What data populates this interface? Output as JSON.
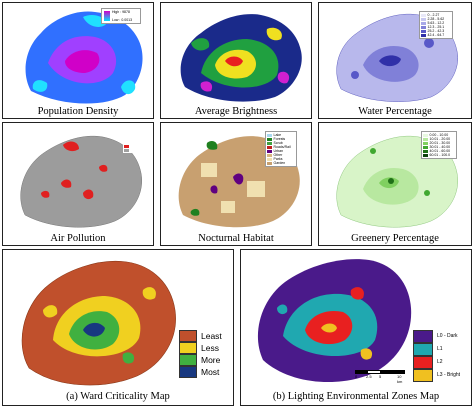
{
  "panels": {
    "population_density": {
      "caption": "Population Density",
      "legend": [
        {
          "label": "High : 9878",
          "color": "#d000c8"
        },
        {
          "label": "Low : 0.0013",
          "color": "#00e0ff"
        }
      ]
    },
    "average_brightness": {
      "caption": "Average Brightness"
    },
    "water_percentage": {
      "caption": "Water Percentage",
      "legend": [
        {
          "label": "0 - 2.27",
          "color": "#e8e8f8"
        },
        {
          "label": "2.28 - 5.62",
          "color": "#c8c8f0"
        },
        {
          "label": "5.63 - 12.2",
          "color": "#a8a8e8"
        },
        {
          "label": "12.3 - 25.1",
          "color": "#8080d8"
        },
        {
          "label": "25.2 - 42.3",
          "color": "#5858c8"
        },
        {
          "label": "42.4 - 64.7",
          "color": "#3030a8"
        }
      ]
    },
    "air_pollution": {
      "caption": "Air Pollution",
      "legend": [
        {
          "label": "",
          "color": "#e02020"
        },
        {
          "label": "",
          "color": "#a0a0a0"
        }
      ]
    },
    "nocturnal_habitat": {
      "caption": "Nocturnal Habitat",
      "legend": [
        {
          "label": "Lake",
          "color": "#a8d8f0"
        },
        {
          "label": "Forests",
          "color": "#208020"
        },
        {
          "label": "Scrub",
          "color": "#40a040"
        },
        {
          "label": "Roads/Rail",
          "color": "#c02020"
        },
        {
          "label": "Urban",
          "color": "#600080"
        },
        {
          "label": "Other",
          "color": "#d8b880"
        },
        {
          "label": "Parks",
          "color": "#f0e0b0"
        },
        {
          "label": "Garden",
          "color": "#c8a070"
        }
      ]
    },
    "greenery_percentage": {
      "caption": "Greenery Percentage",
      "legend": [
        {
          "label": "0.00 - 10.00",
          "color": "#e8f8e0"
        },
        {
          "label": "10.01 - 20.00",
          "color": "#b8e8a0"
        },
        {
          "label": "20.01 - 30.00",
          "color": "#80d060"
        },
        {
          "label": "30.01 - 40.00",
          "color": "#40a830"
        },
        {
          "label": "40.01 - 60.00",
          "color": "#207018"
        },
        {
          "label": "60.01 - 100.0",
          "color": "#0c400c"
        }
      ]
    },
    "ward_criticality": {
      "caption": "(a) Ward Criticality Map",
      "legend": [
        {
          "label": "Least",
          "color": "#c0502c"
        },
        {
          "label": "Less",
          "color": "#f0d020"
        },
        {
          "label": "More",
          "color": "#40b040"
        },
        {
          "label": "Most",
          "color": "#183880"
        }
      ]
    },
    "lighting_zones": {
      "caption": "(b) Lighting Environmental Zones Map",
      "legend": [
        {
          "label": "L0 - Dark",
          "color": "#4a1a8a"
        },
        {
          "label": "L1",
          "color": "#20a8b0"
        },
        {
          "label": "L2",
          "color": "#e82020"
        },
        {
          "label": "L3 - Bright",
          "color": "#f0c020"
        }
      ],
      "scale_labels": [
        "0",
        "2.5",
        "5",
        "10 km"
      ]
    }
  }
}
